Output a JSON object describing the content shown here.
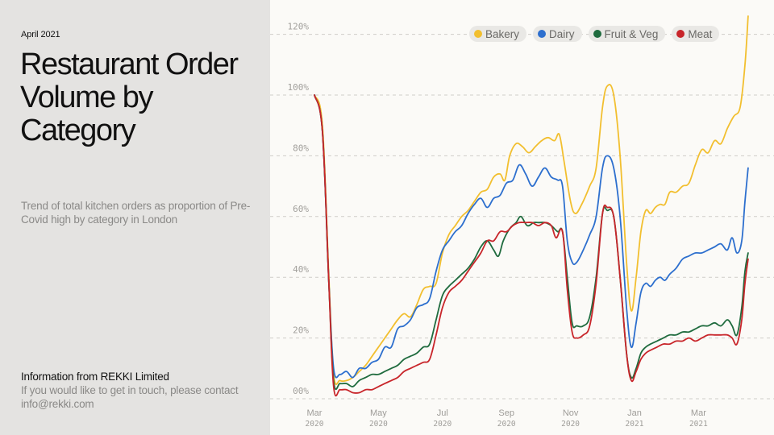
{
  "left_panel": {
    "date": "April 2021",
    "title": "Restaurant Order Volume by Category",
    "subtitle": "Trend of total kitchen orders as proportion of Pre-Covid high by category in London",
    "source": "Information from REKKI Limited",
    "contact": "If you would like to get in touch, please contact info@rekki.com"
  },
  "chart_data": {
    "type": "line",
    "title": "Restaurant Order Volume by Category",
    "xlabel": "",
    "ylabel": "",
    "x_unit": "months since Mar 2020",
    "xlim": [
      0,
      13.6
    ],
    "ylim": [
      0,
      120
    ],
    "grid": true,
    "legend_position": "top-right",
    "yticks": [
      {
        "value": 0,
        "label": "00%"
      },
      {
        "value": 20,
        "label": "20%"
      },
      {
        "value": 40,
        "label": "40%"
      },
      {
        "value": 60,
        "label": "60%"
      },
      {
        "value": 80,
        "label": "80%"
      },
      {
        "value": 100,
        "label": "100%"
      },
      {
        "value": 120,
        "label": "120%"
      }
    ],
    "xticks": [
      {
        "value": 0,
        "month": "Mar",
        "year": "2020"
      },
      {
        "value": 2,
        "month": "May",
        "year": "2020"
      },
      {
        "value": 4,
        "month": "Jul",
        "year": "2020"
      },
      {
        "value": 6,
        "month": "Sep",
        "year": "2020"
      },
      {
        "value": 8,
        "month": "Nov",
        "year": "2020"
      },
      {
        "value": 10,
        "month": "Jan",
        "year": "2021"
      },
      {
        "value": 12,
        "month": "Mar",
        "year": "2021"
      }
    ],
    "series": [
      {
        "name": "Bakery",
        "color": "#f2bf2f",
        "points": [
          [
            0,
            100
          ],
          [
            0.25,
            90
          ],
          [
            0.45,
            40
          ],
          [
            0.6,
            8
          ],
          [
            0.8,
            6
          ],
          [
            1.0,
            6
          ],
          [
            1.2,
            7
          ],
          [
            1.4,
            9
          ],
          [
            1.6,
            11
          ],
          [
            1.8,
            14
          ],
          [
            2.0,
            17
          ],
          [
            2.2,
            20
          ],
          [
            2.4,
            23
          ],
          [
            2.6,
            26
          ],
          [
            2.8,
            28
          ],
          [
            3.0,
            27
          ],
          [
            3.2,
            31
          ],
          [
            3.4,
            36
          ],
          [
            3.6,
            37
          ],
          [
            3.8,
            38
          ],
          [
            4.0,
            48
          ],
          [
            4.2,
            54
          ],
          [
            4.4,
            57
          ],
          [
            4.6,
            60
          ],
          [
            4.8,
            62
          ],
          [
            5.0,
            65
          ],
          [
            5.2,
            68
          ],
          [
            5.4,
            69
          ],
          [
            5.6,
            73
          ],
          [
            5.8,
            74
          ],
          [
            5.95,
            72
          ],
          [
            6.1,
            80
          ],
          [
            6.3,
            84
          ],
          [
            6.5,
            83
          ],
          [
            6.7,
            81
          ],
          [
            6.9,
            83
          ],
          [
            7.1,
            85
          ],
          [
            7.3,
            86
          ],
          [
            7.5,
            85
          ],
          [
            7.65,
            87
          ],
          [
            7.8,
            78
          ],
          [
            8.0,
            65
          ],
          [
            8.15,
            61
          ],
          [
            8.35,
            64
          ],
          [
            8.6,
            70
          ],
          [
            8.8,
            76
          ],
          [
            9.0,
            96
          ],
          [
            9.15,
            103
          ],
          [
            9.35,
            100
          ],
          [
            9.55,
            80
          ],
          [
            9.75,
            45
          ],
          [
            9.9,
            29
          ],
          [
            10.05,
            40
          ],
          [
            10.2,
            55
          ],
          [
            10.35,
            62
          ],
          [
            10.5,
            61
          ],
          [
            10.65,
            63
          ],
          [
            10.8,
            64
          ],
          [
            10.95,
            64
          ],
          [
            11.1,
            68
          ],
          [
            11.3,
            68
          ],
          [
            11.5,
            70
          ],
          [
            11.7,
            71
          ],
          [
            11.9,
            77
          ],
          [
            12.1,
            82
          ],
          [
            12.3,
            81
          ],
          [
            12.5,
            85
          ],
          [
            12.7,
            84
          ],
          [
            12.9,
            89
          ],
          [
            13.1,
            93
          ],
          [
            13.3,
            96
          ],
          [
            13.45,
            110
          ],
          [
            13.55,
            126
          ]
        ]
      },
      {
        "name": "Dairy",
        "color": "#2d6fce",
        "points": [
          [
            0,
            100
          ],
          [
            0.25,
            88
          ],
          [
            0.45,
            38
          ],
          [
            0.6,
            10
          ],
          [
            0.8,
            8
          ],
          [
            1.0,
            9
          ],
          [
            1.2,
            7
          ],
          [
            1.4,
            10
          ],
          [
            1.6,
            10
          ],
          [
            1.8,
            12
          ],
          [
            2.0,
            13
          ],
          [
            2.2,
            17
          ],
          [
            2.4,
            17
          ],
          [
            2.6,
            23
          ],
          [
            2.8,
            24
          ],
          [
            3.0,
            26
          ],
          [
            3.2,
            30
          ],
          [
            3.4,
            31
          ],
          [
            3.6,
            33
          ],
          [
            3.8,
            42
          ],
          [
            4.0,
            49
          ],
          [
            4.2,
            52
          ],
          [
            4.4,
            55
          ],
          [
            4.6,
            57
          ],
          [
            4.8,
            61
          ],
          [
            5.0,
            64
          ],
          [
            5.2,
            66
          ],
          [
            5.4,
            63
          ],
          [
            5.6,
            66
          ],
          [
            5.8,
            67
          ],
          [
            6.0,
            71
          ],
          [
            6.2,
            72
          ],
          [
            6.4,
            77
          ],
          [
            6.6,
            74
          ],
          [
            6.8,
            70
          ],
          [
            7.0,
            73
          ],
          [
            7.2,
            76
          ],
          [
            7.4,
            73
          ],
          [
            7.6,
            72
          ],
          [
            7.75,
            70
          ],
          [
            7.9,
            52
          ],
          [
            8.05,
            45
          ],
          [
            8.2,
            45
          ],
          [
            8.4,
            49
          ],
          [
            8.6,
            54
          ],
          [
            8.8,
            60
          ],
          [
            9.0,
            76
          ],
          [
            9.15,
            80
          ],
          [
            9.35,
            76
          ],
          [
            9.55,
            60
          ],
          [
            9.75,
            30
          ],
          [
            9.9,
            17
          ],
          [
            10.05,
            25
          ],
          [
            10.2,
            35
          ],
          [
            10.35,
            38
          ],
          [
            10.5,
            37
          ],
          [
            10.65,
            39
          ],
          [
            10.8,
            40
          ],
          [
            10.95,
            39
          ],
          [
            11.1,
            41
          ],
          [
            11.3,
            43
          ],
          [
            11.5,
            46
          ],
          [
            11.7,
            47
          ],
          [
            11.9,
            48
          ],
          [
            12.1,
            48
          ],
          [
            12.3,
            49
          ],
          [
            12.5,
            50
          ],
          [
            12.7,
            51
          ],
          [
            12.9,
            49
          ],
          [
            13.05,
            53
          ],
          [
            13.2,
            48
          ],
          [
            13.35,
            52
          ],
          [
            13.45,
            65
          ],
          [
            13.55,
            76
          ]
        ]
      },
      {
        "name": "Fruit & Veg",
        "color": "#1f6b3e",
        "points": [
          [
            0,
            100
          ],
          [
            0.25,
            88
          ],
          [
            0.45,
            38
          ],
          [
            0.6,
            6
          ],
          [
            0.8,
            5
          ],
          [
            1.0,
            5
          ],
          [
            1.2,
            4
          ],
          [
            1.4,
            6
          ],
          [
            1.6,
            7
          ],
          [
            1.8,
            8
          ],
          [
            2.0,
            8
          ],
          [
            2.2,
            9
          ],
          [
            2.4,
            10
          ],
          [
            2.6,
            11
          ],
          [
            2.8,
            13
          ],
          [
            3.0,
            14
          ],
          [
            3.2,
            15
          ],
          [
            3.4,
            17
          ],
          [
            3.6,
            18
          ],
          [
            3.8,
            26
          ],
          [
            4.0,
            34
          ],
          [
            4.2,
            37
          ],
          [
            4.4,
            39
          ],
          [
            4.6,
            41
          ],
          [
            4.8,
            43
          ],
          [
            5.0,
            46
          ],
          [
            5.2,
            50
          ],
          [
            5.4,
            52
          ],
          [
            5.6,
            49
          ],
          [
            5.75,
            47
          ],
          [
            5.9,
            52
          ],
          [
            6.1,
            56
          ],
          [
            6.3,
            58
          ],
          [
            6.45,
            60
          ],
          [
            6.65,
            57
          ],
          [
            6.85,
            58
          ],
          [
            7.0,
            58
          ],
          [
            7.2,
            58
          ],
          [
            7.4,
            57
          ],
          [
            7.6,
            55
          ],
          [
            7.75,
            55
          ],
          [
            7.9,
            40
          ],
          [
            8.05,
            25
          ],
          [
            8.2,
            24
          ],
          [
            8.4,
            24
          ],
          [
            8.6,
            27
          ],
          [
            8.8,
            40
          ],
          [
            9.0,
            61
          ],
          [
            9.15,
            62
          ],
          [
            9.35,
            60
          ],
          [
            9.55,
            40
          ],
          [
            9.75,
            15
          ],
          [
            9.9,
            7
          ],
          [
            10.05,
            10
          ],
          [
            10.2,
            15
          ],
          [
            10.35,
            17
          ],
          [
            10.5,
            18
          ],
          [
            10.7,
            19
          ],
          [
            10.9,
            20
          ],
          [
            11.1,
            21
          ],
          [
            11.3,
            21
          ],
          [
            11.5,
            22
          ],
          [
            11.7,
            22
          ],
          [
            11.9,
            23
          ],
          [
            12.1,
            24
          ],
          [
            12.3,
            24
          ],
          [
            12.5,
            25
          ],
          [
            12.7,
            24
          ],
          [
            12.9,
            26
          ],
          [
            13.05,
            24
          ],
          [
            13.2,
            21
          ],
          [
            13.35,
            30
          ],
          [
            13.45,
            42
          ],
          [
            13.55,
            48
          ]
        ]
      },
      {
        "name": "Meat",
        "color": "#c8252a",
        "points": [
          [
            0,
            100
          ],
          [
            0.25,
            88
          ],
          [
            0.45,
            38
          ],
          [
            0.6,
            4
          ],
          [
            0.8,
            3
          ],
          [
            1.0,
            3
          ],
          [
            1.2,
            2
          ],
          [
            1.4,
            2
          ],
          [
            1.6,
            3
          ],
          [
            1.8,
            3
          ],
          [
            2.0,
            4
          ],
          [
            2.2,
            5
          ],
          [
            2.4,
            6
          ],
          [
            2.6,
            7
          ],
          [
            2.8,
            9
          ],
          [
            3.0,
            10
          ],
          [
            3.2,
            11
          ],
          [
            3.4,
            12
          ],
          [
            3.6,
            13
          ],
          [
            3.8,
            21
          ],
          [
            4.0,
            30
          ],
          [
            4.2,
            35
          ],
          [
            4.4,
            37
          ],
          [
            4.6,
            39
          ],
          [
            4.8,
            42
          ],
          [
            5.0,
            45
          ],
          [
            5.2,
            48
          ],
          [
            5.4,
            52
          ],
          [
            5.6,
            52
          ],
          [
            5.8,
            55
          ],
          [
            6.0,
            55
          ],
          [
            6.2,
            57
          ],
          [
            6.4,
            58
          ],
          [
            6.6,
            58
          ],
          [
            6.8,
            58
          ],
          [
            7.0,
            57
          ],
          [
            7.2,
            58
          ],
          [
            7.4,
            57
          ],
          [
            7.55,
            53
          ],
          [
            7.75,
            55
          ],
          [
            7.9,
            36
          ],
          [
            8.05,
            22
          ],
          [
            8.2,
            20
          ],
          [
            8.4,
            21
          ],
          [
            8.6,
            24
          ],
          [
            8.8,
            38
          ],
          [
            9.0,
            61
          ],
          [
            9.15,
            63
          ],
          [
            9.35,
            60
          ],
          [
            9.55,
            40
          ],
          [
            9.75,
            15
          ],
          [
            9.9,
            6
          ],
          [
            10.05,
            9
          ],
          [
            10.2,
            13
          ],
          [
            10.35,
            15
          ],
          [
            10.5,
            16
          ],
          [
            10.7,
            17
          ],
          [
            10.9,
            18
          ],
          [
            11.1,
            18
          ],
          [
            11.3,
            19
          ],
          [
            11.5,
            19
          ],
          [
            11.7,
            20
          ],
          [
            11.9,
            19
          ],
          [
            12.1,
            20
          ],
          [
            12.3,
            21
          ],
          [
            12.5,
            21
          ],
          [
            12.7,
            21
          ],
          [
            12.9,
            21
          ],
          [
            13.05,
            20
          ],
          [
            13.2,
            18
          ],
          [
            13.35,
            26
          ],
          [
            13.45,
            38
          ],
          [
            13.55,
            46
          ]
        ]
      }
    ]
  }
}
